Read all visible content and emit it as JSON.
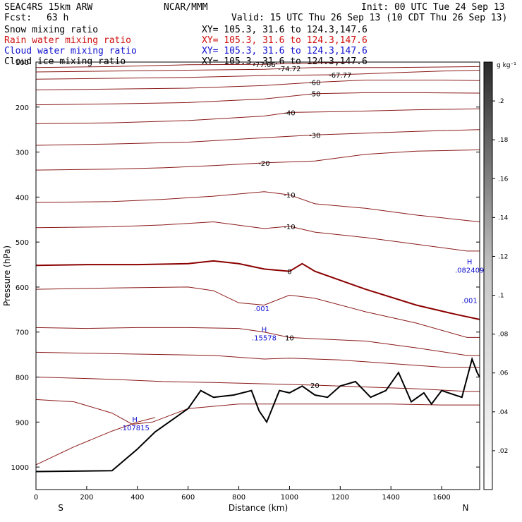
{
  "header": {
    "model": "SEAC4RS 15km ARW",
    "org": "NCAR/MMM",
    "init": "Init: 00 UTC Tue 24 Sep 13",
    "fcst_label": "Fcst:",
    "fcst_value": "63 h",
    "valid": "Valid: 15 UTC Thu 26 Sep 13 (10 CDT Thu 26 Sep 13)",
    "fields": [
      {
        "name": "Snow mixing ratio",
        "xy": "XY= 105.3, 31.6 to 124.3,147.6",
        "color": "#000000"
      },
      {
        "name": "Rain water mixing ratio",
        "xy": "XY= 105.3, 31.6 to 124.3,147.6",
        "color": "#d01010"
      },
      {
        "name": "Cloud water mixing ratio",
        "xy": "XY= 105.3, 31.6 to 124.3,147.6",
        "color": "#1010d0"
      },
      {
        "name": "Cloud ice mixing ratio",
        "xy": "XY= 105.3, 31.6 to 124.3,147.6",
        "color": "#000000"
      }
    ]
  },
  "chart_data": {
    "type": "line",
    "title": "",
    "xlabel": "Distance (km)",
    "ylabel": "Pressure (hPa)",
    "xlim": [
      0,
      1750
    ],
    "ylim": [
      100,
      1050
    ],
    "y_inverted": true,
    "x_ticks": [
      0,
      200,
      400,
      600,
      800,
      1000,
      1200,
      1400,
      1600
    ],
    "y_ticks": [
      100,
      200,
      300,
      400,
      500,
      600,
      700,
      800,
      900,
      1000
    ],
    "x_end_labels": {
      "left": "S",
      "right": "N"
    },
    "colorbar": {
      "unit": "g kg⁻¹",
      "ticks": [
        ".02",
        ".04",
        ".06",
        ".08",
        ".1",
        ".12",
        ".14",
        ".16",
        ".18",
        ".2"
      ],
      "ticks_values": [
        0.02,
        0.04,
        0.06,
        0.08,
        0.1,
        0.12,
        0.14,
        0.16,
        0.18,
        0.2
      ],
      "range": [
        0,
        0.22
      ]
    },
    "isotherms": [
      {
        "label": "-77.66",
        "points": [
          [
            0,
            112
          ],
          [
            300,
            110
          ],
          [
            600,
            106
          ],
          [
            900,
            105
          ],
          [
            1100,
            102
          ],
          [
            1300,
            100
          ],
          [
            1500,
            100
          ]
        ]
      },
      {
        "label": "-74.72",
        "points": [
          [
            0,
            122
          ],
          [
            300,
            120
          ],
          [
            600,
            118
          ],
          [
            900,
            116
          ],
          [
            1000,
            114
          ],
          [
            1100,
            112
          ],
          [
            1400,
            112
          ],
          [
            1600,
            111
          ],
          [
            1750,
            110
          ]
        ]
      },
      {
        "label": "-67.77",
        "points": [
          [
            0,
            138
          ],
          [
            300,
            136
          ],
          [
            600,
            134
          ],
          [
            900,
            130
          ],
          [
            1200,
            128
          ],
          [
            1400,
            124
          ],
          [
            1600,
            120
          ],
          [
            1750,
            118
          ]
        ]
      },
      {
        "label": "-60",
        "points": [
          [
            0,
            162
          ],
          [
            300,
            160
          ],
          [
            600,
            158
          ],
          [
            900,
            152
          ],
          [
            1100,
            145
          ],
          [
            1300,
            140
          ],
          [
            1600,
            140
          ],
          [
            1750,
            141
          ]
        ]
      },
      {
        "label": "-50",
        "points": [
          [
            0,
            195
          ],
          [
            300,
            193
          ],
          [
            600,
            190
          ],
          [
            900,
            182
          ],
          [
            1100,
            170
          ],
          [
            1300,
            168
          ],
          [
            1500,
            168
          ],
          [
            1750,
            169
          ]
        ]
      },
      {
        "label": "-40",
        "points": [
          [
            0,
            237
          ],
          [
            300,
            235
          ],
          [
            600,
            230
          ],
          [
            900,
            220
          ],
          [
            1000,
            212
          ],
          [
            1200,
            210
          ],
          [
            1500,
            206
          ],
          [
            1750,
            204
          ]
        ]
      },
      {
        "label": "-30",
        "points": [
          [
            0,
            285
          ],
          [
            300,
            282
          ],
          [
            600,
            278
          ],
          [
            900,
            268
          ],
          [
            1100,
            262
          ],
          [
            1300,
            258
          ],
          [
            1500,
            254
          ],
          [
            1750,
            250
          ]
        ]
      },
      {
        "label": "-20",
        "points": [
          [
            0,
            340
          ],
          [
            300,
            338
          ],
          [
            500,
            335
          ],
          [
            700,
            330
          ],
          [
            900,
            324
          ],
          [
            1100,
            320
          ],
          [
            1300,
            305
          ],
          [
            1500,
            298
          ],
          [
            1750,
            295
          ]
        ]
      },
      {
        "label": "-10",
        "points": [
          [
            0,
            412
          ],
          [
            300,
            410
          ],
          [
            500,
            405
          ],
          [
            700,
            398
          ],
          [
            900,
            388
          ],
          [
            1000,
            395
          ],
          [
            1100,
            415
          ],
          [
            1300,
            425
          ],
          [
            1500,
            440
          ],
          [
            1750,
            455
          ]
        ]
      },
      {
        "label": "-10",
        "points": [
          [
            0,
            468
          ],
          [
            300,
            466
          ],
          [
            500,
            462
          ],
          [
            700,
            455
          ],
          [
            900,
            470
          ],
          [
            1000,
            465
          ],
          [
            1100,
            478
          ],
          [
            1300,
            490
          ],
          [
            1500,
            505
          ],
          [
            1700,
            520
          ],
          [
            1750,
            520
          ]
        ]
      },
      {
        "label": "0",
        "points": [
          [
            0,
            552
          ],
          [
            200,
            550
          ],
          [
            400,
            550
          ],
          [
            600,
            548
          ],
          [
            700,
            542
          ],
          [
            800,
            548
          ],
          [
            900,
            560
          ],
          [
            1000,
            565
          ],
          [
            1050,
            548
          ],
          [
            1100,
            565
          ],
          [
            1300,
            605
          ],
          [
            1500,
            640
          ],
          [
            1650,
            660
          ],
          [
            1750,
            672
          ]
        ]
      },
      {
        "label": "",
        "points": [
          [
            0,
            605
          ],
          [
            300,
            602
          ],
          [
            600,
            600
          ],
          [
            700,
            608
          ],
          [
            800,
            635
          ],
          [
            900,
            640
          ],
          [
            1000,
            618
          ],
          [
            1100,
            625
          ],
          [
            1300,
            655
          ],
          [
            1500,
            680
          ],
          [
            1700,
            712
          ],
          [
            1750,
            712
          ]
        ]
      },
      {
        "label": "10",
        "points": [
          [
            0,
            690
          ],
          [
            200,
            692
          ],
          [
            400,
            690
          ],
          [
            600,
            690
          ],
          [
            800,
            692
          ],
          [
            900,
            700
          ],
          [
            1000,
            712
          ],
          [
            1100,
            715
          ],
          [
            1300,
            720
          ],
          [
            1500,
            735
          ],
          [
            1700,
            752
          ],
          [
            1750,
            752
          ]
        ]
      },
      {
        "label": "",
        "points": [
          [
            0,
            745
          ],
          [
            300,
            748
          ],
          [
            500,
            750
          ],
          [
            700,
            752
          ],
          [
            900,
            760
          ],
          [
            1000,
            758
          ],
          [
            1200,
            762
          ],
          [
            1400,
            770
          ],
          [
            1600,
            778
          ],
          [
            1750,
            778
          ]
        ]
      },
      {
        "label": "20",
        "points": [
          [
            0,
            800
          ],
          [
            300,
            805
          ],
          [
            500,
            810
          ],
          [
            700,
            812
          ],
          [
            900,
            815
          ],
          [
            1100,
            818
          ],
          [
            1300,
            822
          ],
          [
            1500,
            826
          ],
          [
            1700,
            832
          ],
          [
            1750,
            832
          ]
        ]
      },
      {
        "label": "",
        "points": [
          [
            0,
            850
          ],
          [
            150,
            855
          ],
          [
            300,
            880
          ],
          [
            380,
            905
          ],
          [
            460,
            900
          ],
          [
            600,
            870
          ],
          [
            800,
            860
          ],
          [
            1000,
            860
          ],
          [
            1200,
            860
          ],
          [
            1400,
            860
          ],
          [
            1600,
            862
          ],
          [
            1750,
            862
          ]
        ]
      },
      {
        "label": "",
        "points": [
          [
            0,
            995
          ],
          [
            150,
            955
          ],
          [
            300,
            920
          ],
          [
            400,
            900
          ],
          [
            470,
            890
          ]
        ]
      }
    ],
    "terrain": {
      "points": [
        [
          0,
          1010
        ],
        [
          300,
          1008
        ],
        [
          400,
          960
        ],
        [
          470,
          922
        ],
        [
          550,
          890
        ],
        [
          600,
          870
        ],
        [
          650,
          830
        ],
        [
          700,
          845
        ],
        [
          780,
          840
        ],
        [
          850,
          830
        ],
        [
          880,
          875
        ],
        [
          910,
          900
        ],
        [
          960,
          830
        ],
        [
          1000,
          835
        ],
        [
          1050,
          820
        ],
        [
          1100,
          840
        ],
        [
          1150,
          845
        ],
        [
          1200,
          820
        ],
        [
          1260,
          810
        ],
        [
          1320,
          845
        ],
        [
          1380,
          830
        ],
        [
          1430,
          790
        ],
        [
          1480,
          855
        ],
        [
          1530,
          835
        ],
        [
          1560,
          860
        ],
        [
          1600,
          830
        ],
        [
          1680,
          845
        ],
        [
          1720,
          760
        ],
        [
          1740,
          790
        ],
        [
          1750,
          800
        ]
      ]
    },
    "cloud_water_max": [
      {
        "label": ".15578",
        "x": 900,
        "p": 715
      },
      {
        "label": ".082409",
        "x": 1710,
        "p": 565
      },
      {
        "label": ".107815",
        "x": 390,
        "p": 915
      },
      {
        "label": ".001",
        "x": 890,
        "p": 650
      },
      {
        "label": ".001",
        "x": 1710,
        "p": 632
      }
    ],
    "cloud_water_max_marker": "H",
    "grid": false,
    "legend": "none"
  }
}
